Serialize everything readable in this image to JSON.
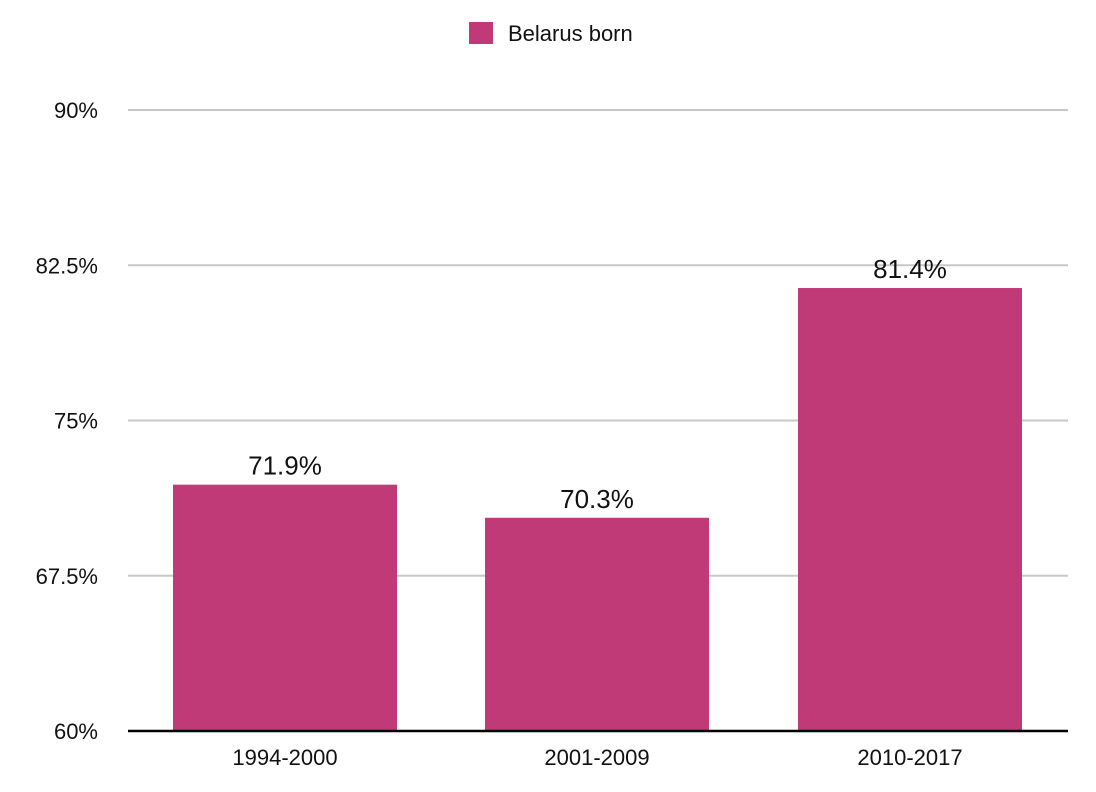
{
  "chart_data": {
    "type": "bar",
    "categories": [
      "1994-2000",
      "2001-2009",
      "2010-2017"
    ],
    "series": [
      {
        "name": "Belarus born",
        "values": [
          71.9,
          70.3,
          81.4
        ],
        "labels": [
          "71.9%",
          "70.3%",
          "81.4%"
        ],
        "color": "#c13a78"
      }
    ],
    "ylim": [
      60,
      90
    ],
    "yticks": [
      60,
      67.5,
      75,
      82.5,
      90
    ],
    "ytick_labels": [
      "60%",
      "67.5%",
      "75%",
      "82.5%",
      "90%"
    ],
    "title": "",
    "xlabel": "",
    "ylabel": "",
    "grid": true,
    "legend_position": "top-center"
  }
}
